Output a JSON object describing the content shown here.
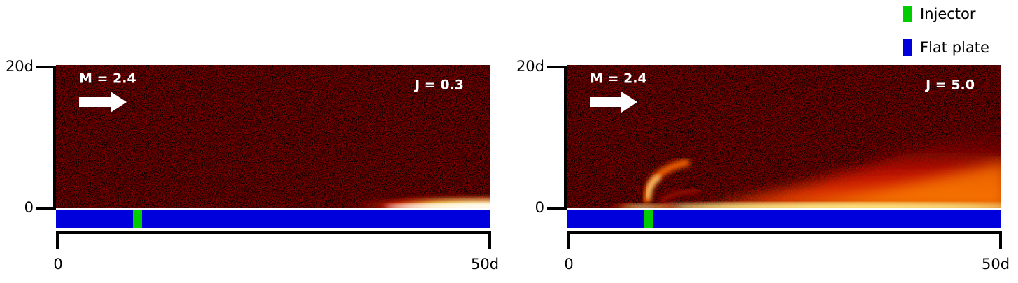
{
  "legend": [
    {
      "label": "Injector",
      "color": "#00cc00"
    },
    {
      "label": "Flat plate",
      "color": "#0000dd"
    }
  ],
  "panels": [
    {
      "y_ticks": [
        "0",
        "20d"
      ],
      "x_ticks": [
        "0",
        "50d"
      ],
      "mach": "M = 2.4",
      "ratio": "J = 0.3"
    },
    {
      "y_ticks": [
        "0",
        "20d"
      ],
      "x_ticks": [
        "0",
        "50d"
      ],
      "mach": "M = 2.4",
      "ratio": "J = 5.0"
    }
  ]
}
